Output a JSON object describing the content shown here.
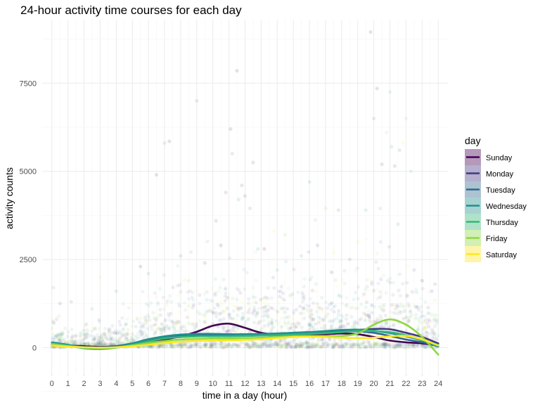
{
  "chart_data": {
    "type": "scatter",
    "title": "24-hour activity time courses for each day",
    "xlabel": "time in a day (hour)",
    "ylabel": "activity counts",
    "xlim": [
      -0.6,
      24.6
    ],
    "ylim": [
      -750,
      9300
    ],
    "x_ticks": [
      0,
      1,
      2,
      3,
      4,
      5,
      6,
      7,
      8,
      9,
      10,
      11,
      12,
      13,
      14,
      15,
      16,
      17,
      18,
      19,
      20,
      21,
      22,
      23,
      24
    ],
    "y_ticks": [
      0,
      2500,
      5000,
      7500
    ],
    "y_tick_labels": [
      "0",
      "2500",
      "5000",
      "7500"
    ],
    "grid": true,
    "legend": {
      "title": "day",
      "position": "right"
    },
    "series": [
      {
        "name": "Sunday",
        "color": "#440154",
        "smooth_x": [
          0,
          1,
          2,
          3,
          4,
          5,
          6,
          7,
          8,
          9,
          10,
          11,
          12,
          13,
          14,
          15,
          16,
          17,
          18,
          19,
          20,
          21,
          22,
          23,
          24
        ],
        "smooth_y": [
          60,
          60,
          40,
          20,
          40,
          80,
          150,
          230,
          320,
          450,
          620,
          680,
          560,
          420,
          370,
          360,
          360,
          380,
          400,
          380,
          300,
          200,
          150,
          120,
          60
        ]
      },
      {
        "name": "Monday",
        "color": "#443983",
        "smooth_x": [
          0,
          1,
          2,
          3,
          4,
          5,
          6,
          7,
          8,
          9,
          10,
          11,
          12,
          13,
          14,
          15,
          16,
          17,
          18,
          19,
          20,
          21,
          22,
          23,
          24
        ],
        "smooth_y": [
          80,
          40,
          10,
          0,
          30,
          90,
          180,
          260,
          300,
          320,
          330,
          340,
          350,
          360,
          380,
          400,
          430,
          450,
          470,
          500,
          530,
          520,
          420,
          300,
          120
        ]
      },
      {
        "name": "Tuesday",
        "color": "#31688e",
        "smooth_x": [
          0,
          1,
          2,
          3,
          4,
          5,
          6,
          7,
          8,
          9,
          10,
          11,
          12,
          13,
          14,
          15,
          16,
          17,
          18,
          19,
          20,
          21,
          22,
          23,
          24
        ],
        "smooth_y": [
          100,
          50,
          20,
          10,
          40,
          120,
          220,
          300,
          340,
          360,
          370,
          370,
          370,
          380,
          400,
          420,
          440,
          450,
          460,
          460,
          420,
          330,
          230,
          150,
          40
        ]
      },
      {
        "name": "Wednesday",
        "color": "#21908d",
        "smooth_x": [
          0,
          1,
          2,
          3,
          4,
          5,
          6,
          7,
          8,
          9,
          10,
          11,
          12,
          13,
          14,
          15,
          16,
          17,
          18,
          19,
          20,
          21,
          22,
          23,
          24
        ],
        "smooth_y": [
          150,
          80,
          10,
          -20,
          10,
          120,
          240,
          320,
          370,
          390,
          390,
          380,
          380,
          390,
          400,
          420,
          440,
          470,
          500,
          510,
          480,
          410,
          320,
          200,
          30
        ]
      },
      {
        "name": "Thursday",
        "color": "#35b779",
        "smooth_x": [
          0,
          1,
          2,
          3,
          4,
          5,
          6,
          7,
          8,
          9,
          10,
          11,
          12,
          13,
          14,
          15,
          16,
          17,
          18,
          19,
          20,
          21,
          22,
          23,
          24
        ],
        "smooth_y": [
          120,
          60,
          -20,
          -40,
          0,
          80,
          180,
          260,
          300,
          320,
          320,
          320,
          330,
          340,
          350,
          370,
          390,
          410,
          440,
          470,
          470,
          440,
          350,
          220,
          80
        ]
      },
      {
        "name": "Friday",
        "color": "#8fd744",
        "smooth_x": [
          0,
          1,
          2,
          3,
          4,
          5,
          6,
          7,
          8,
          9,
          10,
          11,
          12,
          13,
          14,
          15,
          16,
          17,
          18,
          19,
          20,
          21,
          22,
          23,
          24
        ],
        "smooth_y": [
          100,
          40,
          0,
          -10,
          10,
          60,
          130,
          190,
          230,
          250,
          260,
          260,
          270,
          280,
          300,
          320,
          330,
          330,
          330,
          400,
          650,
          800,
          650,
          300,
          -200
        ]
      },
      {
        "name": "Saturday",
        "color": "#fde725",
        "smooth_x": [
          0,
          1,
          2,
          3,
          4,
          5,
          6,
          7,
          8,
          9,
          10,
          11,
          12,
          13,
          14,
          15,
          16,
          17,
          18,
          19,
          20,
          21,
          22,
          23,
          24
        ],
        "smooth_y": [
          60,
          30,
          10,
          0,
          10,
          40,
          80,
          130,
          170,
          190,
          200,
          210,
          220,
          240,
          270,
          300,
          310,
          300,
          280,
          270,
          280,
          320,
          330,
          230,
          60
        ]
      }
    ],
    "scatter_points": [
      [
        0.1,
        1700,
        4
      ],
      [
        0.5,
        1250,
        1
      ],
      [
        6.5,
        4900,
        0
      ],
      [
        7,
        5800,
        3
      ],
      [
        7.3,
        5850,
        0
      ],
      [
        9,
        7000,
        2
      ],
      [
        10.2,
        3600,
        1
      ],
      [
        10.8,
        4400,
        1
      ],
      [
        11.1,
        6200,
        0
      ],
      [
        11.2,
        5500,
        2
      ],
      [
        11.5,
        7850,
        0
      ],
      [
        11.6,
        4200,
        3
      ],
      [
        11.8,
        4600,
        1
      ],
      [
        12,
        4300,
        1
      ],
      [
        12.3,
        3950,
        2
      ],
      [
        12.5,
        5250,
        1
      ],
      [
        13.2,
        2800,
        0
      ],
      [
        14,
        2200,
        4
      ],
      [
        16,
        4700,
        3
      ],
      [
        17,
        3950,
        5
      ],
      [
        17.8,
        3900,
        2
      ],
      [
        19.5,
        3900,
        4
      ],
      [
        19.8,
        8950,
        0
      ],
      [
        20,
        6500,
        2
      ],
      [
        20.2,
        7350,
        0
      ],
      [
        20.5,
        5200,
        1
      ],
      [
        20.8,
        6100,
        5
      ],
      [
        21,
        7250,
        4
      ],
      [
        21.1,
        5700,
        3
      ],
      [
        21.3,
        5150,
        1
      ],
      [
        21.6,
        5600,
        2
      ],
      [
        21.8,
        5800,
        6
      ],
      [
        22,
        6500,
        5
      ],
      [
        22.3,
        5000,
        4
      ],
      [
        20.4,
        3950,
        4
      ],
      [
        21.5,
        3500,
        3
      ],
      [
        23.6,
        1600,
        1
      ],
      [
        23.8,
        1800,
        2
      ],
      [
        3,
        2000,
        6
      ],
      [
        4,
        1600,
        3
      ],
      [
        5.5,
        2300,
        0
      ],
      [
        8.5,
        1900,
        5
      ],
      [
        15.5,
        2600,
        4
      ],
      [
        18.5,
        2500,
        2
      ],
      [
        19,
        3000,
        6
      ],
      [
        10.5,
        2900,
        0
      ],
      [
        13.8,
        3300,
        6
      ],
      [
        16.5,
        2900,
        1
      ],
      [
        1.2,
        1300,
        2
      ],
      [
        2.5,
        1100,
        4
      ],
      [
        6,
        2100,
        3
      ],
      [
        8,
        2600,
        2
      ],
      [
        9.5,
        2400,
        1
      ],
      [
        12.8,
        2800,
        3
      ],
      [
        14.5,
        3200,
        5
      ],
      [
        17.5,
        2700,
        6
      ],
      [
        22.5,
        2200,
        2
      ],
      [
        23,
        1900,
        0
      ]
    ]
  }
}
